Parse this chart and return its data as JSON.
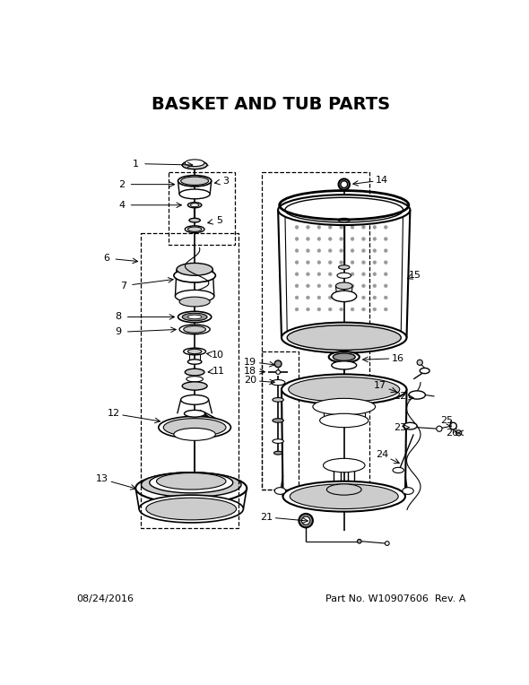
{
  "title": "BASKET AND TUB PARTS",
  "title_fontsize": 14,
  "title_fontweight": "bold",
  "background_color": "#ffffff",
  "footer_left": "08/24/2016",
  "footer_right": "Part No. W10907606  Rev. A",
  "footer_fontsize": 8,
  "line_color": "#000000",
  "light_gray": "#cccccc",
  "mid_gray": "#999999",
  "dark_gray": "#555555"
}
